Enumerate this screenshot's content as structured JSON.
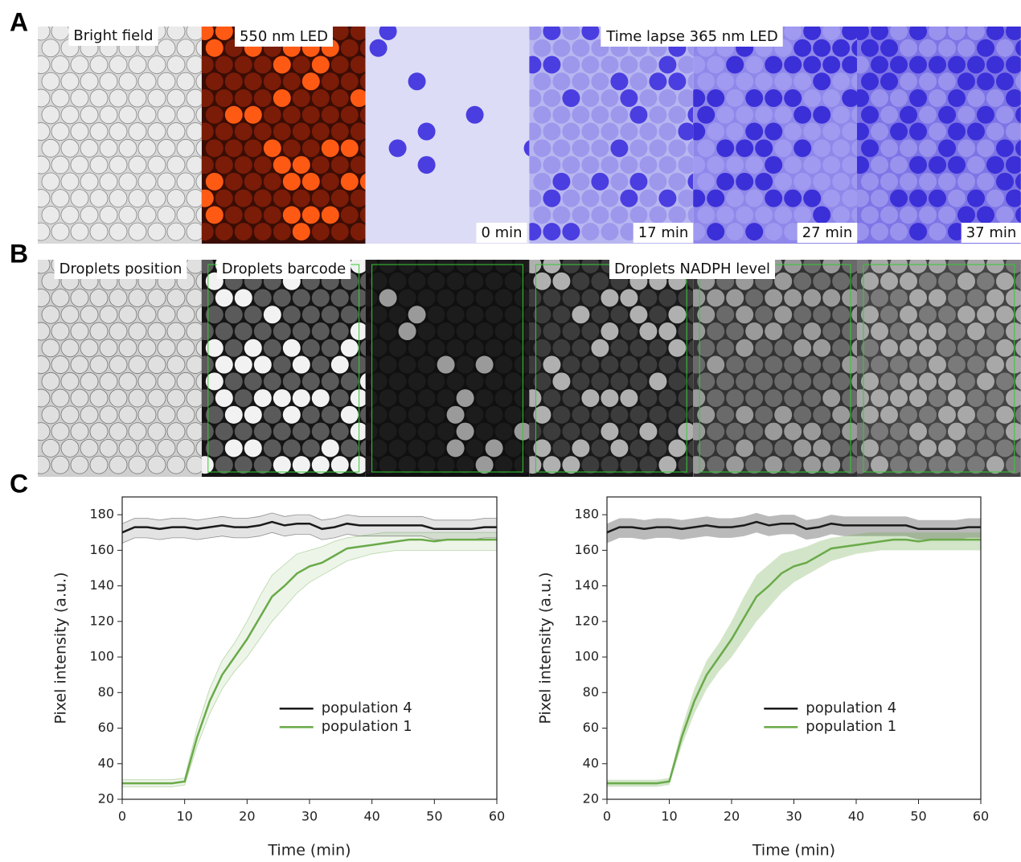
{
  "panels": {
    "a": {
      "label": "A",
      "captions": [
        "Bright field",
        "550 nm LED",
        "Time lapse 365 nm LED"
      ],
      "times": [
        "0 min",
        "17 min",
        "27 min",
        "37 min"
      ]
    },
    "b": {
      "label": "B",
      "captions": [
        "Droplets position",
        "Droplets barcode",
        "Droplets NADPH level"
      ]
    },
    "c": {
      "label": "C"
    }
  },
  "chart_data": [
    {
      "type": "line",
      "xlabel": "Time (min)",
      "ylabel": "Pixel intensity (a.u.)",
      "band_style": "traces",
      "x": [
        0,
        2,
        4,
        6,
        8,
        10,
        12,
        14,
        16,
        18,
        20,
        22,
        24,
        26,
        28,
        30,
        32,
        34,
        36,
        38,
        40,
        42,
        44,
        46,
        48,
        50,
        52,
        54,
        56,
        58,
        60
      ],
      "xlim": [
        0,
        60
      ],
      "xticks": [
        0,
        10,
        20,
        30,
        40,
        50,
        60
      ],
      "ylim": [
        20,
        190
      ],
      "yticks": [
        20,
        40,
        60,
        80,
        100,
        120,
        140,
        160,
        180
      ],
      "legend": "center-right",
      "series": [
        {
          "name": "population 4",
          "color": "#1a1a1a",
          "values": [
            170,
            173,
            173,
            172,
            173,
            173,
            172,
            173,
            174,
            173,
            173,
            174,
            176,
            174,
            175,
            175,
            172,
            173,
            175,
            174,
            174,
            174,
            174,
            174,
            174,
            172,
            172,
            172,
            172,
            173,
            173
          ],
          "lower": [
            164,
            167,
            167,
            166,
            167,
            167,
            166,
            167,
            168,
            167,
            167,
            168,
            170,
            168,
            169,
            169,
            166,
            167,
            169,
            168,
            168,
            168,
            168,
            168,
            168,
            166,
            166,
            166,
            166,
            167,
            167
          ],
          "upper": [
            175,
            178,
            178,
            177,
            178,
            178,
            177,
            178,
            179,
            178,
            178,
            179,
            181,
            179,
            180,
            180,
            177,
            178,
            180,
            179,
            179,
            179,
            179,
            179,
            179,
            177,
            177,
            177,
            177,
            178,
            178
          ]
        },
        {
          "name": "population 1",
          "color": "#6aaa4a",
          "values": [
            29,
            29,
            29,
            29,
            29,
            30,
            55,
            75,
            90,
            100,
            110,
            122,
            134,
            140,
            147,
            151,
            153,
            157,
            161,
            162,
            163,
            164,
            165,
            166,
            166,
            165,
            166,
            166,
            166,
            166,
            166
          ],
          "lower": [
            27,
            27,
            27,
            27,
            27,
            28,
            50,
            68,
            82,
            92,
            100,
            110,
            120,
            128,
            136,
            142,
            146,
            150,
            154,
            156,
            158,
            159,
            160,
            160,
            160,
            160,
            160,
            160,
            160,
            160,
            160
          ],
          "upper": [
            31,
            31,
            31,
            31,
            31,
            32,
            60,
            82,
            98,
            108,
            120,
            134,
            146,
            152,
            158,
            160,
            162,
            165,
            167,
            168,
            169,
            170,
            170,
            170,
            170,
            170,
            170,
            170,
            170,
            170,
            170
          ]
        }
      ]
    },
    {
      "type": "line",
      "xlabel": "Time (min)",
      "ylabel": "Pixel intensity (a.u.)",
      "band_style": "fill",
      "x": [
        0,
        2,
        4,
        6,
        8,
        10,
        12,
        14,
        16,
        18,
        20,
        22,
        24,
        26,
        28,
        30,
        32,
        34,
        36,
        38,
        40,
        42,
        44,
        46,
        48,
        50,
        52,
        54,
        56,
        58,
        60
      ],
      "xlim": [
        0,
        60
      ],
      "xticks": [
        0,
        10,
        20,
        30,
        40,
        50,
        60
      ],
      "ylim": [
        20,
        190
      ],
      "yticks": [
        20,
        40,
        60,
        80,
        100,
        120,
        140,
        160,
        180
      ],
      "legend": "center-right",
      "series": [
        {
          "name": "population 4",
          "color": "#1a1a1a",
          "values": [
            170,
            173,
            173,
            172,
            173,
            173,
            172,
            173,
            174,
            173,
            173,
            174,
            176,
            174,
            175,
            175,
            172,
            173,
            175,
            174,
            174,
            174,
            174,
            174,
            174,
            172,
            172,
            172,
            172,
            173,
            173
          ],
          "lower": [
            164,
            167,
            167,
            166,
            167,
            167,
            166,
            167,
            168,
            167,
            167,
            168,
            170,
            168,
            169,
            169,
            166,
            167,
            169,
            168,
            168,
            168,
            168,
            168,
            168,
            166,
            166,
            166,
            166,
            167,
            167
          ],
          "upper": [
            175,
            178,
            178,
            177,
            178,
            178,
            177,
            178,
            179,
            178,
            178,
            179,
            181,
            179,
            180,
            180,
            177,
            178,
            180,
            179,
            179,
            179,
            179,
            179,
            179,
            177,
            177,
            177,
            177,
            178,
            178
          ]
        },
        {
          "name": "population 1",
          "color": "#6aaa4a",
          "values": [
            29,
            29,
            29,
            29,
            29,
            30,
            55,
            75,
            90,
            100,
            110,
            122,
            134,
            140,
            147,
            151,
            153,
            157,
            161,
            162,
            163,
            164,
            165,
            166,
            166,
            165,
            166,
            166,
            166,
            166,
            166
          ],
          "lower": [
            27,
            27,
            27,
            27,
            27,
            28,
            50,
            68,
            82,
            92,
            100,
            110,
            120,
            128,
            136,
            142,
            146,
            150,
            154,
            156,
            158,
            159,
            160,
            160,
            160,
            160,
            160,
            160,
            160,
            160,
            160
          ],
          "upper": [
            31,
            31,
            31,
            31,
            31,
            32,
            60,
            82,
            98,
            108,
            120,
            134,
            146,
            152,
            158,
            160,
            162,
            165,
            167,
            168,
            169,
            170,
            170,
            170,
            170,
            170,
            170,
            170,
            170,
            170,
            170
          ]
        }
      ]
    }
  ]
}
